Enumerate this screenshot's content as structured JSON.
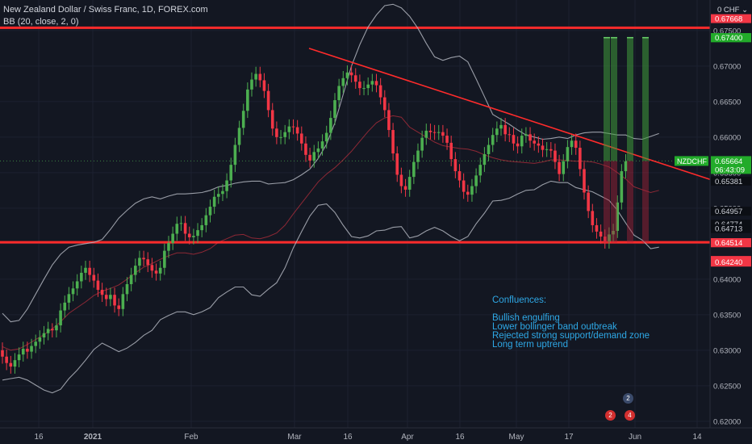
{
  "header": {
    "title": "New Zealand Dollar / Swiss Franc, 1D, FOREX.com",
    "indicator": "BB (20, close, 2, 0)"
  },
  "currency_label": "CHF",
  "notes": {
    "title": "Confluences:",
    "items": [
      "Bullish engulfing",
      "Lower bollinger band outbreak",
      "Rejected strong support/demand zone",
      "Long term uptrend"
    ]
  },
  "badges": [
    "2",
    "2",
    "4"
  ],
  "colors": {
    "background": "#131722",
    "up": "#4caf50",
    "down": "#f23645",
    "zone_line": "#ff2b2b",
    "upper_band": "#b2b5be",
    "basis": "#f23645",
    "note_text": "#2ea8e6",
    "target": "#3f9a3a",
    "stop": "#a6243a"
  },
  "chart_data": {
    "type": "candlestick",
    "title": "New Zealand Dollar / Swiss Franc, 1D, FOREX.com",
    "symbol": "NZDCHF",
    "ylabel": "CHF",
    "ylim": [
      0.6168,
      0.6793
    ],
    "y_ticks": [
      "0.62000",
      "0.62500",
      "0.63000",
      "0.63500",
      "0.64000",
      "0.64500",
      "0.65000",
      "0.65500",
      "0.66000",
      "0.66500",
      "0.67000",
      "0.67500"
    ],
    "x_ticks": [
      "16",
      "2021",
      "Feb",
      "Mar",
      "16",
      "Apr",
      "16",
      "May",
      "17",
      "Jun",
      "14"
    ],
    "grid": true,
    "last_price": "0.65664",
    "countdown": "06:43:09",
    "price_labels": [
      {
        "value": "0.67668",
        "color": "red"
      },
      {
        "value": "0.67400",
        "color": "green"
      },
      {
        "value": "0.67400",
        "color": "green"
      },
      {
        "value": "0.67400",
        "color": "green"
      },
      {
        "value": "0.67400",
        "color": "green"
      },
      {
        "value": "0.65381",
        "color": "black"
      },
      {
        "value": "0.64957",
        "color": "black"
      },
      {
        "value": "0.64774",
        "color": "black"
      },
      {
        "value": "0.64713",
        "color": "black"
      },
      {
        "value": "0.64514",
        "color": "red"
      },
      {
        "value": "0.64514",
        "color": "red"
      },
      {
        "value": "0.64514",
        "color": "red"
      },
      {
        "value": "0.64264",
        "color": "red"
      },
      {
        "value": "0.64240",
        "color": "red"
      }
    ],
    "horizontal_levels": [
      0.6754,
      0.6452
    ],
    "trendline": {
      "from": [
        "Mar 4",
        0.6725
      ],
      "to": [
        "Jun 17",
        0.6588
      ]
    },
    "series": [
      {
        "name": "Upper band",
        "values": [
          [
            0.6352,
            0.634,
            0.6342,
            0.6358,
            0.6379,
            0.64,
            0.642,
            0.6435,
            0.6445,
            0.6448,
            0.645,
            0.6452,
            0.6456,
            0.647,
            0.6486,
            0.6497,
            0.6507,
            0.6513,
            0.6516,
            0.6513,
            0.6517,
            0.652,
            0.652,
            0.6521,
            0.6522,
            0.6525,
            0.653,
            0.6532,
            0.6535,
            0.6537,
            0.6538,
            0.6538,
            0.6534,
            0.6535,
            0.6536,
            0.654,
            0.6547,
            0.6555,
            0.657,
            0.659,
            0.662,
            0.666,
            0.67,
            0.673,
            0.6755,
            0.6772,
            0.6785,
            0.6787,
            0.6782,
            0.677,
            0.6753,
            0.6732,
            0.6713,
            0.6708,
            0.6712,
            0.6714,
            0.6706,
            0.6682,
            0.6657,
            0.6632,
            0.6625,
            0.6618,
            0.661,
            0.6603,
            0.66,
            0.6597,
            0.6598,
            0.66,
            0.6598,
            0.6603,
            0.6606,
            0.6607,
            0.6607,
            0.6605,
            0.6603,
            0.6603,
            0.6598,
            0.6597,
            0.6601,
            0.6605
          ]
        ]
      },
      {
        "name": "Basis",
        "values": [
          [
            0.6305,
            0.63,
            0.6302,
            0.6308,
            0.6315,
            0.6322,
            0.633,
            0.634,
            0.6352,
            0.636,
            0.6368,
            0.6377,
            0.6383,
            0.6387,
            0.6392,
            0.64,
            0.6409,
            0.6417,
            0.6422,
            0.6428,
            0.6433,
            0.6437,
            0.6437,
            0.6435,
            0.6438,
            0.6443,
            0.6452,
            0.6457,
            0.6462,
            0.6463,
            0.6458,
            0.6457,
            0.646,
            0.6465,
            0.6476,
            0.6492,
            0.6507,
            0.6522,
            0.6537,
            0.6548,
            0.6557,
            0.6568,
            0.658,
            0.6594,
            0.6608,
            0.662,
            0.6627,
            0.663,
            0.6628,
            0.6614,
            0.6607,
            0.66,
            0.6593,
            0.6588,
            0.6586,
            0.6584,
            0.6583,
            0.658,
            0.6575,
            0.6571,
            0.6568,
            0.6566,
            0.6565,
            0.6564,
            0.6563,
            0.6565,
            0.6568,
            0.6568,
            0.6567,
            0.6566,
            0.6566,
            0.6565,
            0.6562,
            0.6558,
            0.655,
            0.6541,
            0.653,
            0.6526,
            0.6522,
            0.6525
          ]
        ]
      },
      {
        "name": "Lower band",
        "values": [
          [
            0.6258,
            0.626,
            0.6262,
            0.6258,
            0.6251,
            0.6244,
            0.624,
            0.6245,
            0.626,
            0.6272,
            0.6286,
            0.6301,
            0.631,
            0.6304,
            0.6298,
            0.6303,
            0.6311,
            0.6321,
            0.6328,
            0.6343,
            0.6349,
            0.6354,
            0.6354,
            0.635,
            0.6354,
            0.636,
            0.6374,
            0.6382,
            0.6389,
            0.6389,
            0.6378,
            0.6376,
            0.6386,
            0.6395,
            0.6416,
            0.6444,
            0.6467,
            0.6489,
            0.6504,
            0.6506,
            0.6494,
            0.6476,
            0.646,
            0.6458,
            0.6461,
            0.6468,
            0.6469,
            0.6473,
            0.6474,
            0.6458,
            0.6461,
            0.6468,
            0.6473,
            0.6468,
            0.646,
            0.6454,
            0.646,
            0.6478,
            0.6493,
            0.651,
            0.6511,
            0.6514,
            0.652,
            0.6525,
            0.6526,
            0.6533,
            0.6538,
            0.6536,
            0.6536,
            0.6529,
            0.6526,
            0.6523,
            0.6517,
            0.6511,
            0.6497,
            0.6479,
            0.6462,
            0.6455,
            0.6443,
            0.6445
          ]
        ]
      }
    ],
    "candles": {
      "open": [
        0.63,
        0.6291,
        0.6282,
        0.6277,
        0.6286,
        0.6294,
        0.6302,
        0.6298,
        0.6306,
        0.6312,
        0.6318,
        0.6324,
        0.633,
        0.6328,
        0.6335,
        0.6356,
        0.6367,
        0.6379,
        0.6387,
        0.6397,
        0.6409,
        0.6416,
        0.6406,
        0.6398,
        0.6385,
        0.6378,
        0.6372,
        0.6378,
        0.6363,
        0.6358,
        0.6379,
        0.6393,
        0.6406,
        0.6419,
        0.643,
        0.6428,
        0.642,
        0.6412,
        0.6408,
        0.6416,
        0.644,
        0.6451,
        0.6464,
        0.6478,
        0.6479,
        0.6464,
        0.6459,
        0.6461,
        0.6469,
        0.6476,
        0.649,
        0.6502,
        0.6516,
        0.652,
        0.6524,
        0.6539,
        0.6561,
        0.6589,
        0.6613,
        0.6637,
        0.6667,
        0.6681,
        0.6689,
        0.668,
        0.6665,
        0.6638,
        0.6612,
        0.66,
        0.66,
        0.6607,
        0.6615,
        0.6614,
        0.6605,
        0.6591,
        0.6575,
        0.6567,
        0.6579,
        0.6584,
        0.6594,
        0.6606,
        0.6627,
        0.6652,
        0.6672,
        0.6683,
        0.6691,
        0.6687,
        0.6678,
        0.6669,
        0.6669,
        0.6674,
        0.6679,
        0.6673,
        0.6656,
        0.6638,
        0.661,
        0.6577,
        0.6547,
        0.6531,
        0.6526,
        0.6544,
        0.6565,
        0.6581,
        0.6599,
        0.6609,
        0.6607,
        0.6606,
        0.6607,
        0.6602,
        0.6592,
        0.6569,
        0.6552,
        0.6539,
        0.6523,
        0.6519,
        0.6531,
        0.6546,
        0.6561,
        0.6576,
        0.6589,
        0.6603,
        0.6612,
        0.6617,
        0.6604,
        0.6603,
        0.6591,
        0.6587,
        0.6602,
        0.6604,
        0.6595,
        0.6591,
        0.6588,
        0.6582,
        0.6583,
        0.6581,
        0.6565,
        0.6548,
        0.6566,
        0.6586,
        0.6595,
        0.6585,
        0.6555,
        0.6522,
        0.6496,
        0.6476,
        0.6467,
        0.646,
        0.6453,
        0.6463,
        0.6468,
        0.6508,
        0.6552
      ],
      "close": [
        0.6291,
        0.6282,
        0.6277,
        0.6286,
        0.6294,
        0.6302,
        0.6298,
        0.6306,
        0.6312,
        0.6318,
        0.6324,
        0.633,
        0.6328,
        0.6335,
        0.6356,
        0.6367,
        0.6379,
        0.6387,
        0.6397,
        0.6409,
        0.6416,
        0.6406,
        0.6398,
        0.6385,
        0.6378,
        0.6372,
        0.6378,
        0.6363,
        0.6358,
        0.6379,
        0.6393,
        0.6406,
        0.6419,
        0.643,
        0.6428,
        0.642,
        0.6412,
        0.6408,
        0.6416,
        0.644,
        0.6451,
        0.6464,
        0.6478,
        0.6479,
        0.6464,
        0.6459,
        0.6461,
        0.6469,
        0.6476,
        0.649,
        0.6502,
        0.6516,
        0.652,
        0.6524,
        0.6539,
        0.6561,
        0.6589,
        0.6613,
        0.6637,
        0.6667,
        0.6681,
        0.6689,
        0.668,
        0.6665,
        0.6638,
        0.6612,
        0.66,
        0.66,
        0.6607,
        0.6615,
        0.6614,
        0.6605,
        0.6591,
        0.6575,
        0.6567,
        0.6579,
        0.6584,
        0.6594,
        0.6606,
        0.6627,
        0.6652,
        0.6672,
        0.6683,
        0.6691,
        0.6687,
        0.6678,
        0.6669,
        0.6669,
        0.6674,
        0.6679,
        0.6673,
        0.6656,
        0.6638,
        0.661,
        0.6577,
        0.6547,
        0.6531,
        0.6526,
        0.6544,
        0.6565,
        0.6581,
        0.6599,
        0.6609,
        0.6607,
        0.6606,
        0.6607,
        0.6602,
        0.6592,
        0.6569,
        0.6552,
        0.6539,
        0.6523,
        0.6519,
        0.6531,
        0.6546,
        0.6561,
        0.6576,
        0.6589,
        0.6603,
        0.6612,
        0.6617,
        0.6604,
        0.6603,
        0.6591,
        0.6587,
        0.6602,
        0.6604,
        0.6595,
        0.6591,
        0.6588,
        0.6582,
        0.6583,
        0.6581,
        0.6565,
        0.6548,
        0.6566,
        0.6586,
        0.6595,
        0.6585,
        0.6555,
        0.6522,
        0.6496,
        0.6476,
        0.6467,
        0.646,
        0.6453,
        0.6463,
        0.6468,
        0.6508,
        0.6552,
        0.6566
      ],
      "high": [
        0.6311,
        0.6301,
        0.6292,
        0.6296,
        0.6304,
        0.6312,
        0.6312,
        0.6316,
        0.6322,
        0.6328,
        0.6334,
        0.634,
        0.6338,
        0.6345,
        0.6366,
        0.6377,
        0.6389,
        0.6397,
        0.6407,
        0.6419,
        0.6426,
        0.6426,
        0.6416,
        0.6408,
        0.6395,
        0.6388,
        0.6388,
        0.6388,
        0.6373,
        0.6389,
        0.6403,
        0.6416,
        0.6429,
        0.644,
        0.644,
        0.6438,
        0.643,
        0.6422,
        0.6426,
        0.645,
        0.6461,
        0.6474,
        0.6488,
        0.6489,
        0.6489,
        0.6474,
        0.6471,
        0.6479,
        0.6486,
        0.65,
        0.6512,
        0.6526,
        0.653,
        0.6534,
        0.6549,
        0.6571,
        0.6599,
        0.6623,
        0.6647,
        0.6677,
        0.6691,
        0.6699,
        0.6699,
        0.669,
        0.6675,
        0.6648,
        0.6622,
        0.661,
        0.6617,
        0.6625,
        0.6625,
        0.6624,
        0.6615,
        0.6601,
        0.6585,
        0.6589,
        0.6594,
        0.6604,
        0.6616,
        0.6637,
        0.6662,
        0.6682,
        0.6693,
        0.6701,
        0.6701,
        0.6697,
        0.6688,
        0.6679,
        0.6684,
        0.6689,
        0.6689,
        0.6683,
        0.6666,
        0.6648,
        0.662,
        0.6587,
        0.6557,
        0.6541,
        0.6554,
        0.6575,
        0.6591,
        0.6609,
        0.6619,
        0.6619,
        0.6617,
        0.6617,
        0.6617,
        0.6612,
        0.6602,
        0.6579,
        0.6562,
        0.6549,
        0.6533,
        0.6541,
        0.6556,
        0.6571,
        0.6586,
        0.6599,
        0.6613,
        0.6622,
        0.6627,
        0.6627,
        0.6614,
        0.6613,
        0.6601,
        0.6612,
        0.6614,
        0.6614,
        0.6605,
        0.6601,
        0.6598,
        0.6593,
        0.6593,
        0.6591,
        0.6575,
        0.6576,
        0.6596,
        0.6605,
        0.6605,
        0.6595,
        0.6565,
        0.6532,
        0.6506,
        0.6486,
        0.6477,
        0.647,
        0.6473,
        0.6478,
        0.6518,
        0.6562,
        0.6576
      ],
      "low": [
        0.6281,
        0.6272,
        0.6267,
        0.6267,
        0.6276,
        0.6284,
        0.6288,
        0.6288,
        0.6296,
        0.6302,
        0.6308,
        0.6314,
        0.6318,
        0.6318,
        0.6325,
        0.6346,
        0.6357,
        0.6369,
        0.6377,
        0.6387,
        0.6399,
        0.6396,
        0.6388,
        0.6375,
        0.6368,
        0.6362,
        0.6362,
        0.6353,
        0.6348,
        0.6348,
        0.6369,
        0.6383,
        0.6396,
        0.6409,
        0.6418,
        0.641,
        0.6402,
        0.6398,
        0.6398,
        0.6406,
        0.643,
        0.6441,
        0.6454,
        0.6468,
        0.6454,
        0.6449,
        0.6449,
        0.6451,
        0.6459,
        0.6466,
        0.648,
        0.6492,
        0.6506,
        0.651,
        0.6514,
        0.6529,
        0.6551,
        0.6579,
        0.6603,
        0.6627,
        0.6657,
        0.6671,
        0.667,
        0.6655,
        0.6628,
        0.6602,
        0.659,
        0.659,
        0.659,
        0.6597,
        0.6604,
        0.6595,
        0.6581,
        0.6565,
        0.6557,
        0.6557,
        0.6569,
        0.6574,
        0.6584,
        0.6596,
        0.6617,
        0.6642,
        0.6662,
        0.6673,
        0.6677,
        0.6668,
        0.6659,
        0.6659,
        0.6659,
        0.6664,
        0.6663,
        0.6646,
        0.6628,
        0.66,
        0.6567,
        0.6537,
        0.6521,
        0.6516,
        0.6516,
        0.6534,
        0.6555,
        0.6571,
        0.6589,
        0.6597,
        0.6596,
        0.6596,
        0.6592,
        0.6582,
        0.6559,
        0.6542,
        0.6529,
        0.6513,
        0.6509,
        0.6509,
        0.6521,
        0.6536,
        0.6551,
        0.6566,
        0.6579,
        0.6593,
        0.6602,
        0.6594,
        0.6593,
        0.6581,
        0.6577,
        0.6577,
        0.6592,
        0.6585,
        0.6581,
        0.6578,
        0.6572,
        0.6572,
        0.6571,
        0.6555,
        0.6538,
        0.6538,
        0.6556,
        0.6575,
        0.6575,
        0.6545,
        0.6512,
        0.6486,
        0.6466,
        0.6457,
        0.645,
        0.6443,
        0.6443,
        0.6453,
        0.6458,
        0.6498,
        0.6542
      ]
    },
    "position_projection": {
      "entry": "0.65664",
      "targets": [
        "0.67400",
        "0.67400",
        "0.67400",
        "0.67400"
      ],
      "stops": [
        "0.64514",
        "0.64514",
        "0.64514"
      ]
    }
  }
}
